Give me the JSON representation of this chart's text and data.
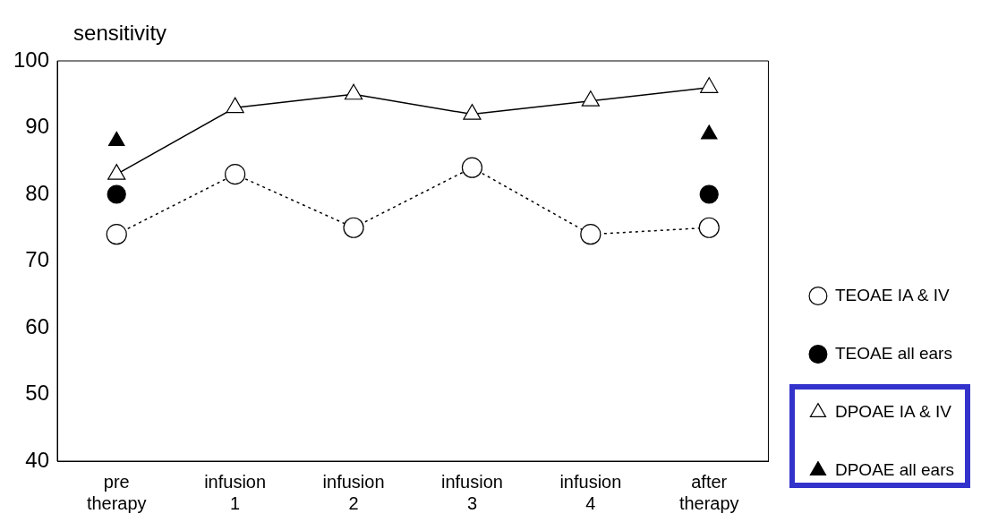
{
  "chart_data": {
    "type": "line",
    "ylabel": "sensitivity",
    "categories": [
      "pre therapy",
      "infusion 1",
      "infusion 2",
      "infusion 3",
      "infusion 4",
      "after therapy"
    ],
    "series": [
      {
        "name": "TEOAE IA & IV",
        "type": "line",
        "color": "#000000",
        "marker": "circle",
        "line_style": "dotted",
        "values": [
          74,
          83,
          75,
          84,
          74,
          75
        ]
      },
      {
        "name": "TEOAE all ears",
        "type": "scatter",
        "color": "#000000",
        "marker": "circle",
        "values": [
          80,
          null,
          null,
          null,
          null,
          80
        ]
      },
      {
        "name": "DPOAE IA & IV",
        "type": "line",
        "color": "#000000",
        "marker": "triangle",
        "line_style": "solid",
        "values": [
          83,
          93,
          95,
          92,
          94,
          96
        ]
      },
      {
        "name": "DPOAE all ears",
        "type": "scatter",
        "color": "#000000",
        "marker": "triangle",
        "values": [
          88,
          null,
          null,
          null,
          null,
          89
        ]
      }
    ],
    "ylim": [
      40,
      100
    ],
    "yticks": [
      40,
      50,
      60,
      70,
      80,
      90,
      100
    ],
    "grid": false,
    "legend": "right"
  }
}
